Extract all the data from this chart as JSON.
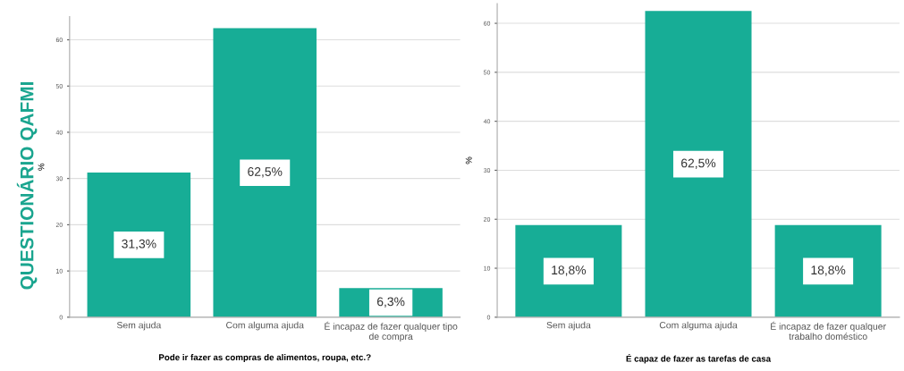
{
  "chart_data": [
    {
      "type": "bar",
      "xlabel": "Pode ir fazer as compras de alimentos, roupa, etc.?",
      "ylabel": "%",
      "categories": [
        "Sem ajuda",
        "Com alguma ajuda",
        "É incapaz de fazer qualquer tipo de compra"
      ],
      "values": [
        31.3,
        62.5,
        6.3
      ],
      "value_labels": [
        "31,3%",
        "62,5%",
        "6,3%"
      ],
      "color": "#17ad96",
      "ylim": [
        0,
        65
      ],
      "yticks": [
        0,
        10,
        20,
        30,
        40,
        50,
        60
      ],
      "grid": "y",
      "annotations": [
        "QUESTIONÁRIO QAFMI"
      ]
    },
    {
      "type": "bar",
      "xlabel": "É capaz de fazer as tarefas de casa",
      "ylabel": "%",
      "categories": [
        "Sem ajuda",
        "Com alguma ajuda",
        "É incapaz de fazer qualquer trabalho doméstico"
      ],
      "values": [
        18.8,
        62.5,
        18.8
      ],
      "value_labels": [
        "18,8%",
        "62,5%",
        "18,8%"
      ],
      "color": "#17ad96",
      "ylim": [
        0,
        64
      ],
      "yticks": [
        0,
        10,
        20,
        30,
        40,
        50,
        60
      ],
      "grid": "y"
    }
  ]
}
